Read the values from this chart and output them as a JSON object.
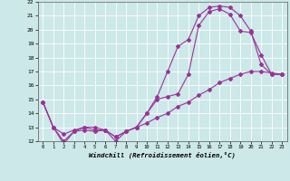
{
  "xlabel": "Windchill (Refroidissement éolien,°C)",
  "xlim": [
    -0.5,
    23.5
  ],
  "ylim": [
    12,
    22
  ],
  "yticks": [
    12,
    13,
    14,
    15,
    16,
    17,
    18,
    19,
    20,
    21,
    22
  ],
  "xticks": [
    0,
    1,
    2,
    3,
    4,
    5,
    6,
    7,
    8,
    9,
    10,
    11,
    12,
    13,
    14,
    15,
    16,
    17,
    18,
    19,
    20,
    21,
    22,
    23
  ],
  "line_color": "#993399",
  "bg_color": "#cce8e8",
  "grid_color": "#ffffff",
  "line1_x": [
    0,
    1,
    2,
    3,
    4,
    5,
    6,
    7,
    8,
    9,
    10,
    11,
    12,
    13,
    14,
    15,
    16,
    17,
    18,
    19,
    20,
    21,
    22,
    23
  ],
  "line1_y": [
    14.8,
    13.0,
    11.8,
    12.7,
    12.8,
    12.7,
    12.8,
    12.3,
    12.7,
    13.0,
    13.3,
    13.7,
    14.0,
    14.5,
    14.8,
    15.3,
    15.7,
    16.2,
    16.5,
    16.8,
    17.0,
    17.0,
    16.9,
    16.8
  ],
  "line2_x": [
    0,
    1,
    2,
    3,
    4,
    5,
    6,
    7,
    8,
    9,
    10,
    11,
    12,
    13,
    14,
    15,
    16,
    17,
    18,
    19,
    20,
    21,
    22,
    23
  ],
  "line2_y": [
    14.8,
    13.0,
    12.5,
    12.8,
    13.0,
    13.0,
    12.8,
    12.0,
    12.7,
    13.0,
    14.0,
    15.0,
    15.2,
    15.4,
    16.8,
    20.3,
    21.3,
    21.5,
    21.1,
    19.9,
    19.8,
    18.2,
    16.8,
    16.8
  ],
  "line3_x": [
    0,
    1,
    2,
    3,
    4,
    5,
    6,
    7,
    8,
    9,
    10,
    11,
    12,
    13,
    14,
    15,
    16,
    17,
    18,
    19,
    20,
    21,
    22,
    23
  ],
  "line3_y": [
    14.8,
    13.0,
    12.0,
    12.7,
    13.0,
    12.8,
    12.8,
    12.3,
    12.7,
    13.0,
    14.0,
    15.2,
    17.0,
    18.8,
    19.3,
    21.0,
    21.6,
    21.7,
    21.6,
    21.0,
    19.9,
    17.5,
    16.8,
    16.8
  ]
}
